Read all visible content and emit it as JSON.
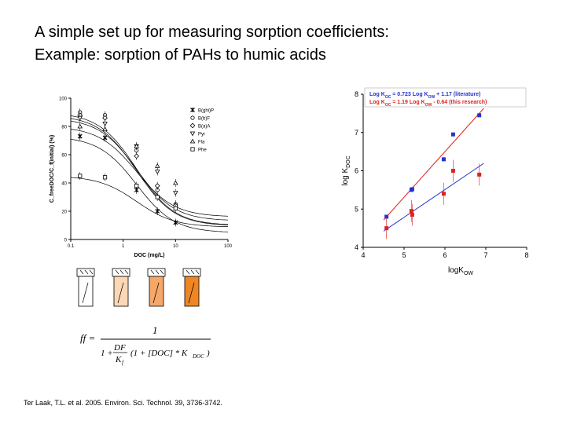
{
  "slide": {
    "title_line1": "A simple set up for measuring sorption coefficients:",
    "title_line2": "Example: sorption of PAHs to humic acids",
    "citation": "Ter Laak, T.L. et al. 2005. Environ. Sci. Technol. 39, 3736-3742."
  },
  "formula": {
    "lhs": "ff =",
    "numerator": "1",
    "den_prefix": "1 +",
    "df": "DF",
    "kf": "K",
    "kf_sub": "f",
    "bracket": "(1 + [DOC] * K",
    "bracket_sub": "DOC",
    "bracket_close": ")"
  },
  "vials": {
    "colors": [
      "#ffffff",
      "#fbd7b5",
      "#f6a869",
      "#ef8624"
    ]
  },
  "chart_data": [
    {
      "type": "scatter",
      "xlabel": "DOC (mg/L)",
      "ylabel": "C_freeDOC/C_f(initial) (%)",
      "xscale": "log",
      "xlim": [
        0.1,
        100
      ],
      "ylim": [
        0,
        100
      ],
      "xticks": [
        "0.1",
        "1",
        "10",
        "100"
      ],
      "yticks": [
        "0",
        "20",
        "40",
        "60",
        "80",
        "100"
      ],
      "legend_position": "right",
      "series": [
        {
          "name": "B(ghi)P",
          "marker": "filled-star",
          "x": [
            0.15,
            0.45,
            1.8,
            4.5,
            10
          ],
          "y": [
            73,
            72,
            35,
            20,
            12
          ]
        },
        {
          "name": "B(b)F",
          "marker": "open-circle",
          "x": [
            0.15,
            0.45,
            1.8,
            4.5,
            10
          ],
          "y": [
            90,
            88,
            63,
            35,
            25
          ]
        },
        {
          "name": "B(a)A",
          "marker": "open-diamond",
          "x": [
            0.15,
            0.45,
            1.8,
            4.5,
            10
          ],
          "y": [
            88,
            86,
            59,
            38,
            24
          ]
        },
        {
          "name": "Pyr",
          "marker": "open-triangle-down",
          "x": [
            0.15,
            0.45,
            1.8,
            4.5,
            10
          ],
          "y": [
            86,
            82,
            66,
            48,
            33
          ]
        },
        {
          "name": "Fla",
          "marker": "open-triangle-up",
          "x": [
            0.15,
            0.45,
            1.8,
            4.5,
            10
          ],
          "y": [
            80,
            78,
            66,
            52,
            40
          ]
        },
        {
          "name": "Phe",
          "marker": "open-square",
          "x": [
            0.15,
            0.45,
            1.8,
            4.5,
            10
          ],
          "y": [
            45,
            44,
            38,
            30,
            22
          ]
        }
      ],
      "legend_labels": [
        "B(ghi)P",
        "B(b)F",
        "B(a)A",
        "Pyr",
        "Fla",
        "Phe"
      ]
    },
    {
      "type": "scatter",
      "xlabel": "logK",
      "xlabel_sub": "OW",
      "ylabel": "log K",
      "ylabel_sub": "DOC",
      "xlim": [
        4,
        8
      ],
      "ylim": [
        4,
        8
      ],
      "xticks": [
        "4",
        "5",
        "6",
        "7",
        "8"
      ],
      "yticks": [
        "4",
        "5",
        "6",
        "7",
        "8"
      ],
      "legend": [
        {
          "text": "Log K",
          "sub": "OC",
          "rest1": " = 0.723 Log K",
          "sub2": "OW",
          "rest2": " + 1.17 (literature)",
          "color": "#2233cc"
        },
        {
          "text": "Log K",
          "sub": "OC",
          "rest1": " = 1.19 Log K",
          "sub2": "OW",
          "rest2": " - 0.64 (this research)",
          "color": "#dd2222"
        }
      ],
      "series": [
        {
          "name": "literature",
          "color": "#2233cc",
          "x": [
            4.57,
            5.18,
            5.2,
            5.97,
            6.2,
            6.84
          ],
          "y": [
            4.8,
            5.5,
            5.52,
            6.3,
            6.95,
            7.45
          ]
        },
        {
          "name": "this research",
          "color": "#dd2222",
          "x": [
            4.57,
            5.18,
            5.2,
            5.97,
            6.2,
            6.84
          ],
          "y": [
            4.5,
            4.95,
            4.85,
            5.4,
            6.0,
            5.9
          ]
        }
      ],
      "fit_lines": [
        {
          "color": "#2233cc",
          "slope": 0.723,
          "intercept": 1.17
        },
        {
          "color": "#dd2222",
          "slope": 1.19,
          "intercept": -0.64
        }
      ]
    }
  ]
}
